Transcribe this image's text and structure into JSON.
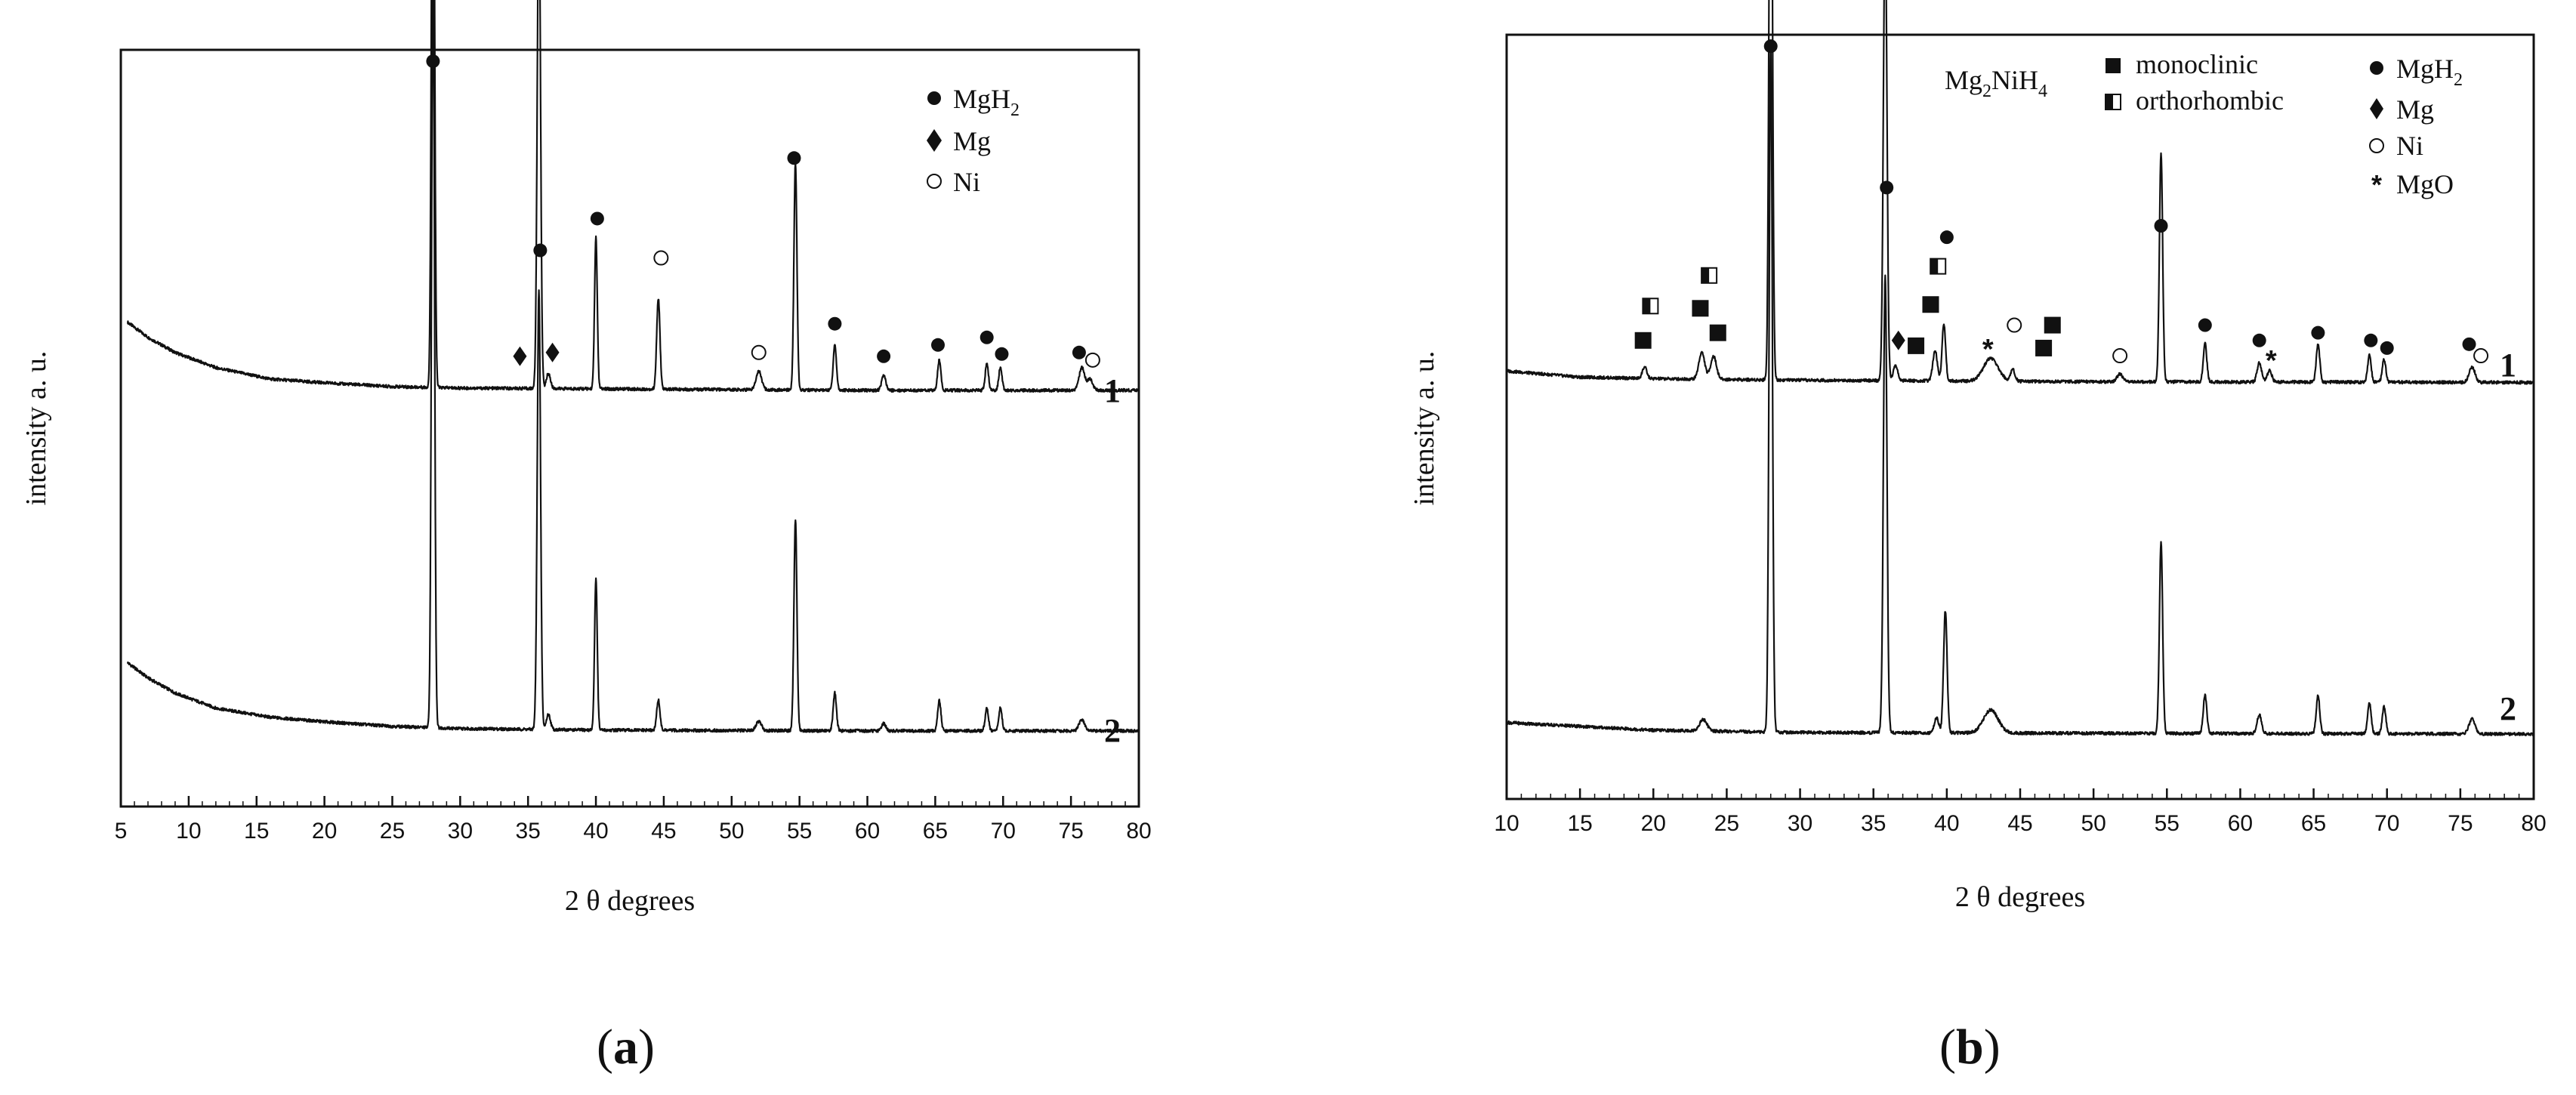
{
  "chart_data": [
    {
      "id": "a",
      "type": "line",
      "caption": "a",
      "xlabel": "2 θ degrees",
      "ylabel": "intensity a. u.",
      "xlim": [
        5,
        80
      ],
      "major_ticks": [
        5,
        10,
        15,
        20,
        25,
        30,
        35,
        40,
        45,
        50,
        55,
        60,
        65,
        70,
        75,
        80
      ],
      "grid": false,
      "legend": {
        "position": "top-right",
        "entries": [
          {
            "marker": "circle-filled",
            "sub": "H",
            "sub_index": "2",
            "base": "Mg",
            "label": "MgH2"
          },
          {
            "marker": "diamond-filled",
            "label": "Mg"
          },
          {
            "marker": "circle-open",
            "label": "Ni"
          }
        ]
      },
      "series": [
        {
          "name": "1",
          "baseline": 0.55,
          "curve": [
            [
              5.5,
              0.64
            ],
            [
              7,
              0.62
            ],
            [
              9,
              0.6
            ],
            [
              12,
              0.58
            ],
            [
              16,
              0.565
            ],
            [
              20,
              0.56
            ],
            [
              25,
              0.555
            ],
            [
              30,
              0.553
            ],
            [
              40,
              0.552
            ],
            [
              60,
              0.55
            ],
            [
              80,
              0.55
            ]
          ],
          "peaks": [
            {
              "x": 28.0,
              "h": 0.935,
              "w": 0.11
            },
            {
              "x": 35.8,
              "h": 0.66,
              "w": 0.12
            },
            {
              "x": 36.5,
              "h": 0.02,
              "w": 0.15
            },
            {
              "x": 40.0,
              "h": 0.2,
              "w": 0.1
            },
            {
              "x": 44.6,
              "h": 0.12,
              "w": 0.12
            },
            {
              "x": 52.0,
              "h": 0.025,
              "w": 0.2
            },
            {
              "x": 54.7,
              "h": 0.3,
              "w": 0.11
            },
            {
              "x": 57.6,
              "h": 0.06,
              "w": 0.12
            },
            {
              "x": 61.2,
              "h": 0.02,
              "w": 0.15
            },
            {
              "x": 65.3,
              "h": 0.04,
              "w": 0.12
            },
            {
              "x": 68.8,
              "h": 0.035,
              "w": 0.12
            },
            {
              "x": 69.8,
              "h": 0.03,
              "w": 0.12
            },
            {
              "x": 75.8,
              "h": 0.03,
              "w": 0.2
            },
            {
              "x": 76.4,
              "h": 0.015,
              "w": 0.2
            }
          ],
          "markers": [
            {
              "type": "circle-filled",
              "x": 28.0,
              "y": 0.985
            },
            {
              "type": "circle-filled",
              "x": 35.9,
              "y": 0.735
            },
            {
              "type": "circle-filled",
              "x": 40.1,
              "y": 0.777
            },
            {
              "type": "circle-open",
              "x": 44.8,
              "y": 0.725
            },
            {
              "type": "circle-open",
              "x": 52.0,
              "y": 0.6
            },
            {
              "type": "circle-filled",
              "x": 54.6,
              "y": 0.857
            },
            {
              "type": "circle-filled",
              "x": 57.6,
              "y": 0.638
            },
            {
              "type": "circle-filled",
              "x": 61.2,
              "y": 0.595
            },
            {
              "type": "circle-filled",
              "x": 65.2,
              "y": 0.61
            },
            {
              "type": "circle-filled",
              "x": 68.8,
              "y": 0.62
            },
            {
              "type": "circle-filled",
              "x": 69.9,
              "y": 0.598
            },
            {
              "type": "circle-filled",
              "x": 75.6,
              "y": 0.6
            },
            {
              "type": "circle-open",
              "x": 76.6,
              "y": 0.59
            },
            {
              "type": "diamond-filled",
              "x": 34.4,
              "y": 0.595
            },
            {
              "type": "diamond-filled",
              "x": 36.8,
              "y": 0.6
            }
          ]
        },
        {
          "name": "2",
          "baseline": 0.1,
          "curve": [
            [
              5.5,
              0.19
            ],
            [
              7,
              0.17
            ],
            [
              9,
              0.15
            ],
            [
              12,
              0.13
            ],
            [
              16,
              0.118
            ],
            [
              20,
              0.112
            ],
            [
              25,
              0.106
            ],
            [
              30,
              0.103
            ],
            [
              40,
              0.101
            ],
            [
              60,
              0.1
            ],
            [
              80,
              0.1
            ]
          ],
          "peaks": [
            {
              "x": 28.0,
              "h": 1.0,
              "w": 0.11
            },
            {
              "x": 35.8,
              "h": 0.58,
              "w": 0.12
            },
            {
              "x": 36.5,
              "h": 0.02,
              "w": 0.15
            },
            {
              "x": 40.0,
              "h": 0.2,
              "w": 0.1
            },
            {
              "x": 44.6,
              "h": 0.04,
              "w": 0.12
            },
            {
              "x": 52.0,
              "h": 0.012,
              "w": 0.2
            },
            {
              "x": 54.7,
              "h": 0.28,
              "w": 0.11
            },
            {
              "x": 57.6,
              "h": 0.05,
              "w": 0.12
            },
            {
              "x": 61.2,
              "h": 0.01,
              "w": 0.15
            },
            {
              "x": 65.3,
              "h": 0.04,
              "w": 0.12
            },
            {
              "x": 68.8,
              "h": 0.03,
              "w": 0.12
            },
            {
              "x": 69.8,
              "h": 0.03,
              "w": 0.12
            },
            {
              "x": 75.8,
              "h": 0.015,
              "w": 0.2
            }
          ],
          "markers": []
        }
      ]
    },
    {
      "id": "b",
      "type": "line",
      "caption": "b",
      "xlabel": "2 θ degrees",
      "ylabel": "intensity a. u.",
      "xlim": [
        10,
        80
      ],
      "major_ticks": [
        10,
        15,
        20,
        25,
        30,
        35,
        40,
        45,
        50,
        55,
        60,
        65,
        70,
        75,
        80
      ],
      "grid": false,
      "legend": {
        "position": "top-right",
        "group_label": {
          "base": "Mg",
          "sub": "2",
          "rest": "NiH",
          "sub2": "4",
          "text": "Mg2NiH4"
        },
        "entries": [
          {
            "marker": "square-filled",
            "label": "monoclinic"
          },
          {
            "marker": "square-half",
            "label": "orthorhombic"
          },
          {
            "marker": "circle-filled",
            "base": "Mg",
            "sub": "H",
            "sub_index": "2",
            "label": "MgH2"
          },
          {
            "marker": "diamond-filled",
            "label": "Mg"
          },
          {
            "marker": "circle-open",
            "label": "Ni"
          },
          {
            "marker": "asterisk",
            "label": "MgO"
          }
        ]
      },
      "series": [
        {
          "name": "1",
          "baseline": 0.545,
          "curve": [
            [
              10,
              0.56
            ],
            [
              15,
              0.552
            ],
            [
              20,
              0.55
            ],
            [
              30,
              0.548
            ],
            [
              50,
              0.546
            ],
            [
              80,
              0.545
            ]
          ],
          "peaks": [
            {
              "x": 19.4,
              "h": 0.015,
              "w": 0.15
            },
            {
              "x": 23.3,
              "h": 0.035,
              "w": 0.2
            },
            {
              "x": 24.1,
              "h": 0.03,
              "w": 0.2
            },
            {
              "x": 28.0,
              "h": 0.93,
              "w": 0.11
            },
            {
              "x": 35.8,
              "h": 0.61,
              "w": 0.12
            },
            {
              "x": 36.5,
              "h": 0.02,
              "w": 0.15
            },
            {
              "x": 39.2,
              "h": 0.04,
              "w": 0.15
            },
            {
              "x": 39.8,
              "h": 0.075,
              "w": 0.12
            },
            {
              "x": 43.0,
              "h": 0.03,
              "w": 0.5
            },
            {
              "x": 44.5,
              "h": 0.015,
              "w": 0.15
            },
            {
              "x": 51.8,
              "h": 0.01,
              "w": 0.2
            },
            {
              "x": 54.6,
              "h": 0.3,
              "w": 0.11
            },
            {
              "x": 57.6,
              "h": 0.05,
              "w": 0.12
            },
            {
              "x": 61.3,
              "h": 0.025,
              "w": 0.15
            },
            {
              "x": 62.0,
              "h": 0.015,
              "w": 0.15
            },
            {
              "x": 65.3,
              "h": 0.05,
              "w": 0.12
            },
            {
              "x": 68.8,
              "h": 0.035,
              "w": 0.12
            },
            {
              "x": 69.8,
              "h": 0.03,
              "w": 0.12
            },
            {
              "x": 75.8,
              "h": 0.02,
              "w": 0.2
            }
          ],
          "markers": [
            {
              "type": "square-filled",
              "x": 19.3,
              "y": 0.6
            },
            {
              "type": "square-half",
              "x": 19.8,
              "y": 0.645
            },
            {
              "type": "square-filled",
              "x": 23.2,
              "y": 0.642
            },
            {
              "type": "square-half",
              "x": 23.8,
              "y": 0.685
            },
            {
              "type": "square-filled",
              "x": 24.4,
              "y": 0.61
            },
            {
              "type": "circle-filled",
              "x": 28.0,
              "y": 0.985
            },
            {
              "type": "circle-filled",
              "x": 35.9,
              "y": 0.8
            },
            {
              "type": "diamond-filled",
              "x": 36.7,
              "y": 0.6
            },
            {
              "type": "square-filled",
              "x": 37.9,
              "y": 0.593
            },
            {
              "type": "square-filled",
              "x": 38.9,
              "y": 0.647
            },
            {
              "type": "square-half",
              "x": 39.4,
              "y": 0.697
            },
            {
              "type": "circle-filled",
              "x": 40.0,
              "y": 0.735
            },
            {
              "type": "asterisk",
              "x": 42.8,
              "y": 0.59
            },
            {
              "type": "circle-open",
              "x": 44.6,
              "y": 0.62
            },
            {
              "type": "square-filled",
              "x": 46.6,
              "y": 0.59
            },
            {
              "type": "square-filled",
              "x": 47.2,
              "y": 0.62
            },
            {
              "type": "circle-open",
              "x": 51.8,
              "y": 0.58
            },
            {
              "type": "circle-filled",
              "x": 54.6,
              "y": 0.75
            },
            {
              "type": "circle-filled",
              "x": 57.6,
              "y": 0.62
            },
            {
              "type": "circle-filled",
              "x": 61.3,
              "y": 0.6
            },
            {
              "type": "asterisk",
              "x": 62.1,
              "y": 0.575
            },
            {
              "type": "circle-filled",
              "x": 65.3,
              "y": 0.61
            },
            {
              "type": "circle-filled",
              "x": 68.9,
              "y": 0.6
            },
            {
              "type": "circle-filled",
              "x": 70.0,
              "y": 0.59
            },
            {
              "type": "circle-filled",
              "x": 75.6,
              "y": 0.595
            },
            {
              "type": "circle-open",
              "x": 76.4,
              "y": 0.58
            }
          ]
        },
        {
          "name": "2",
          "baseline": 0.085,
          "curve": [
            [
              10,
              0.1
            ],
            [
              15,
              0.095
            ],
            [
              20,
              0.09
            ],
            [
              30,
              0.087
            ],
            [
              50,
              0.086
            ],
            [
              80,
              0.085
            ]
          ],
          "peaks": [
            {
              "x": 23.4,
              "h": 0.015,
              "w": 0.25
            },
            {
              "x": 28.0,
              "h": 0.9,
              "w": 0.11
            },
            {
              "x": 35.8,
              "h": 0.6,
              "w": 0.12
            },
            {
              "x": 39.3,
              "h": 0.02,
              "w": 0.15
            },
            {
              "x": 39.9,
              "h": 0.16,
              "w": 0.12
            },
            {
              "x": 43.0,
              "h": 0.03,
              "w": 0.5
            },
            {
              "x": 54.6,
              "h": 0.25,
              "w": 0.11
            },
            {
              "x": 57.6,
              "h": 0.05,
              "w": 0.12
            },
            {
              "x": 61.3,
              "h": 0.025,
              "w": 0.15
            },
            {
              "x": 65.3,
              "h": 0.05,
              "w": 0.12
            },
            {
              "x": 68.8,
              "h": 0.04,
              "w": 0.12
            },
            {
              "x": 69.8,
              "h": 0.035,
              "w": 0.12
            },
            {
              "x": 75.8,
              "h": 0.02,
              "w": 0.2
            }
          ],
          "markers": []
        }
      ]
    }
  ]
}
